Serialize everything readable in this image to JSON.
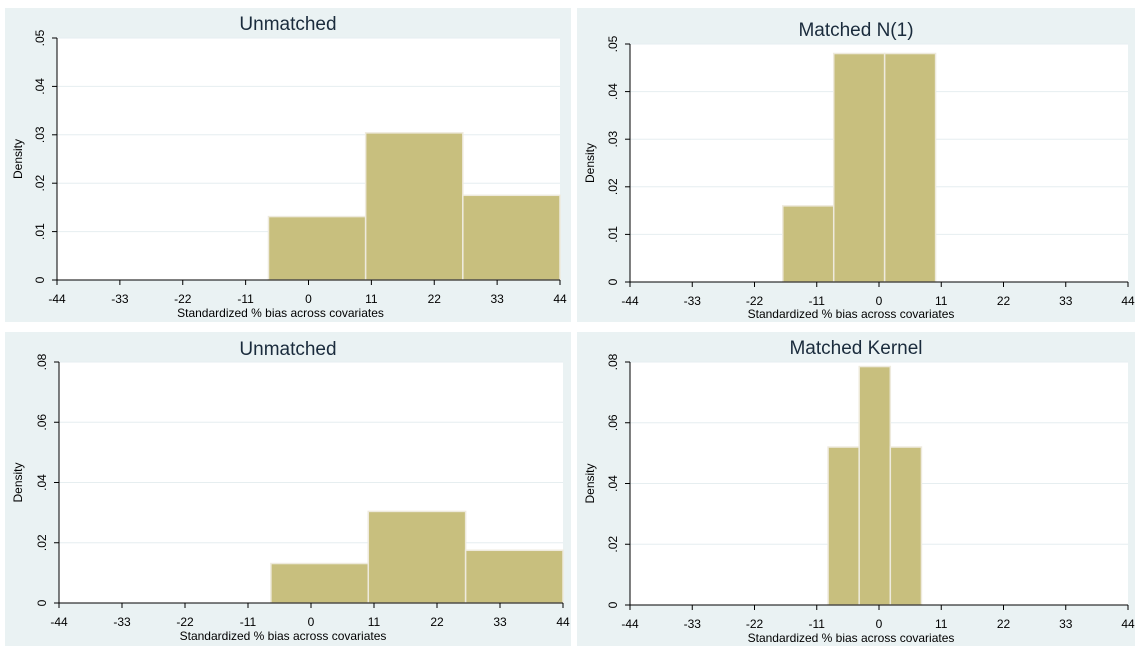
{
  "chart_data": [
    {
      "type": "bar",
      "title": "Unmatched",
      "xlabel": "Standardized % bias across covariates",
      "ylabel": "Density",
      "xticks": [
        "-44",
        "-33",
        "-22",
        "-11",
        "0",
        "11",
        "22",
        "33",
        "44"
      ],
      "yticks": [
        "0",
        ".01",
        ".02",
        ".03",
        ".04",
        ".05"
      ],
      "xlim": [
        -44,
        44
      ],
      "ylim": [
        0,
        0.05
      ],
      "bins": [
        {
          "x0": -7,
          "x1": 10,
          "density": 0.0131
        },
        {
          "x0": 10,
          "x1": 27,
          "density": 0.0304
        },
        {
          "x0": 27,
          "x1": 44,
          "density": 0.0175
        }
      ]
    },
    {
      "type": "bar",
      "title": "Matched N(1)",
      "xlabel": "Standardized % bias across covariates",
      "ylabel": "Density",
      "xticks": [
        "-44",
        "-33",
        "-22",
        "-11",
        "0",
        "11",
        "22",
        "33",
        "44"
      ],
      "yticks": [
        "0",
        ".01",
        ".02",
        ".03",
        ".04",
        ".05"
      ],
      "xlim": [
        -44,
        44
      ],
      "ylim": [
        0,
        0.05
      ],
      "bins": [
        {
          "x0": -17,
          "x1": -8,
          "density": 0.016
        },
        {
          "x0": -8,
          "x1": 1,
          "density": 0.048
        },
        {
          "x0": 1,
          "x1": 10,
          "density": 0.048
        }
      ]
    },
    {
      "type": "bar",
      "title": "Unmatched",
      "xlabel": "Standardized % bias across covariates",
      "ylabel": "Density",
      "xticks": [
        "-44",
        "-33",
        "-22",
        "-11",
        "0",
        "11",
        "22",
        "33",
        "44"
      ],
      "yticks": [
        "0",
        ".02",
        ".04",
        ".06",
        ".08"
      ],
      "xlim": [
        -44,
        44
      ],
      "ylim": [
        0,
        0.08
      ],
      "bins": [
        {
          "x0": -7,
          "x1": 10,
          "density": 0.0131
        },
        {
          "x0": 10,
          "x1": 27,
          "density": 0.0304
        },
        {
          "x0": 27,
          "x1": 44,
          "density": 0.0175
        }
      ]
    },
    {
      "type": "bar",
      "title": "Matched Kernel",
      "xlabel": "Standardized % bias across covariates",
      "ylabel": "Density",
      "xticks": [
        "-44",
        "-33",
        "-22",
        "-11",
        "0",
        "11",
        "22",
        "33",
        "44"
      ],
      "yticks": [
        "0",
        ".02",
        ".04",
        ".06",
        ".08"
      ],
      "xlim": [
        -44,
        44
      ],
      "ylim": [
        0,
        0.08
      ],
      "bins": [
        {
          "x0": -9,
          "x1": -3.5,
          "density": 0.052
        },
        {
          "x0": -3.5,
          "x1": 2,
          "density": 0.0785
        },
        {
          "x0": 2,
          "x1": 7.5,
          "density": 0.052
        }
      ]
    }
  ]
}
